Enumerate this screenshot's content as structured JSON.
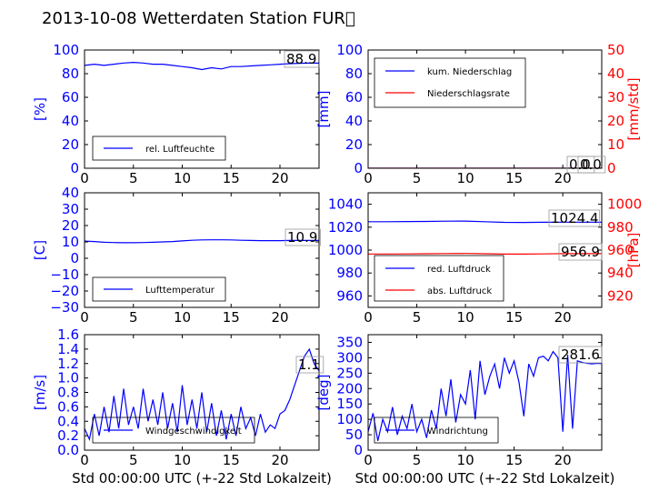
{
  "title": "2013-10-08 Wetterdaten Station FUR\u0000",
  "colors": {
    "primary": "#0000ff",
    "secondary": "#ff0000"
  },
  "chart_data": [
    {
      "id": "humidity",
      "type": "line",
      "x": [
        0,
        1,
        2,
        3,
        4,
        5,
        6,
        7,
        8,
        9,
        10,
        11,
        12,
        13,
        14,
        15,
        16,
        17,
        18,
        19,
        20,
        21,
        22,
        23,
        24
      ],
      "xlim": [
        0,
        24
      ],
      "ylim": [
        0,
        100
      ],
      "yticks": [
        0,
        20,
        40,
        60,
        80,
        100
      ],
      "xticks": [
        0,
        5,
        10,
        15,
        20
      ],
      "ylabel": "[%]",
      "series": [
        {
          "name": "rel. Luftfeuchte",
          "color": "#0000ff",
          "axis": "left",
          "values": [
            87,
            88,
            87,
            88,
            89,
            89.5,
            89,
            88,
            88,
            87,
            86,
            85,
            83.5,
            85,
            84,
            86,
            86,
            86.5,
            87,
            87.5,
            88,
            88.5,
            88.8,
            88.9,
            88.9
          ]
        }
      ],
      "annotation": "88.9",
      "legend_loc": "lower-center"
    },
    {
      "id": "precip",
      "type": "line",
      "x": [
        0,
        24
      ],
      "xlim": [
        0,
        24
      ],
      "ylim": [
        0,
        100
      ],
      "yticks": [
        0,
        20,
        40,
        60,
        80,
        100
      ],
      "ylabel": "[mm]",
      "y2lim": [
        0,
        50
      ],
      "y2ticks": [
        0,
        10,
        20,
        30,
        40,
        50
      ],
      "y2label": "[mm/std]",
      "xticks": [
        0,
        5,
        10,
        15,
        20
      ],
      "series": [
        {
          "name": "kum. Niederschlag",
          "color": "#0000ff",
          "axis": "left",
          "values": [
            0,
            0
          ]
        },
        {
          "name": "Niederschlagsrate",
          "color": "#ff0000",
          "axis": "right",
          "values": [
            0,
            0
          ]
        }
      ],
      "annotations": [
        "0.0",
        "0.0"
      ],
      "legend_loc": "upper-left"
    },
    {
      "id": "temperature",
      "type": "line",
      "x": [
        0,
        1,
        2,
        3,
        4,
        5,
        6,
        7,
        8,
        9,
        10,
        11,
        12,
        13,
        14,
        15,
        16,
        17,
        18,
        19,
        20,
        21,
        22,
        23,
        24
      ],
      "xlim": [
        0,
        24
      ],
      "ylim": [
        -30,
        40
      ],
      "yticks": [
        -30,
        -20,
        -10,
        0,
        10,
        20,
        30,
        40
      ],
      "ylabel": "[C]",
      "xticks": [
        0,
        5,
        10,
        15,
        20
      ],
      "series": [
        {
          "name": "Lufttemperatur",
          "color": "#0000ff",
          "axis": "left",
          "values": [
            10.5,
            10.2,
            9.8,
            9.6,
            9.5,
            9.5,
            9.6,
            9.8,
            10,
            10.2,
            10.6,
            11,
            11.2,
            11.3,
            11.3,
            11.2,
            11,
            10.9,
            10.8,
            10.8,
            10.8,
            10.9,
            10.9,
            10.9,
            10.9
          ]
        }
      ],
      "annotation": "10.9",
      "legend_loc": "lower-center"
    },
    {
      "id": "pressure",
      "type": "line",
      "x": [
        0,
        2,
        4,
        6,
        8,
        10,
        12,
        14,
        16,
        18,
        20,
        22,
        24
      ],
      "xlim": [
        0,
        24
      ],
      "ylim": [
        950,
        1050
      ],
      "yticks": [
        960,
        980,
        1000,
        1020,
        1040
      ],
      "y2lim": [
        910,
        1010
      ],
      "y2ticks": [
        920,
        940,
        960,
        980,
        1000
      ],
      "y2label": "[hPa]",
      "xticks": [
        0,
        5,
        10,
        15,
        20
      ],
      "series": [
        {
          "name": "red. Luftdruck",
          "color": "#0000ff",
          "axis": "left",
          "values": [
            1024.8,
            1024.8,
            1024.9,
            1025,
            1025.2,
            1025.3,
            1024.8,
            1024.2,
            1024.1,
            1024.3,
            1024.4,
            1024.4,
            1024.4
          ]
        },
        {
          "name": "abs. Luftdruck",
          "color": "#ff0000",
          "axis": "right",
          "values": [
            956.6,
            956.6,
            956.7,
            956.8,
            957,
            957.1,
            956.8,
            956.5,
            956.5,
            956.7,
            956.9,
            956.9,
            956.9
          ]
        }
      ],
      "annotations": [
        "1024.4",
        "956.9"
      ],
      "legend_loc": "lower-left"
    },
    {
      "id": "windspeed",
      "type": "line",
      "x": [
        0,
        0.5,
        1,
        1.5,
        2,
        2.5,
        3,
        3.5,
        4,
        4.5,
        5,
        5.5,
        6,
        6.5,
        7,
        7.5,
        8,
        8.5,
        9,
        9.5,
        10,
        10.5,
        11,
        11.5,
        12,
        12.5,
        13,
        13.5,
        14,
        14.5,
        15,
        15.5,
        16,
        16.5,
        17,
        17.5,
        18,
        18.5,
        19,
        19.5,
        20,
        20.5,
        21,
        21.5,
        22,
        22.5,
        23,
        23.5,
        24
      ],
      "xlim": [
        0,
        24
      ],
      "ylim": [
        0,
        1.6
      ],
      "yticks": [
        0.0,
        0.2,
        0.4,
        0.6,
        0.8,
        1.0,
        1.2,
        1.4,
        1.6
      ],
      "ylabel": "[m/s]",
      "xticks": [
        0,
        5,
        10,
        15,
        20
      ],
      "xlabel": "Std 00:00:00 UTC (+-22 Std Lokalzeit)",
      "series": [
        {
          "name": "Windgeschwindigkeit",
          "color": "#0000ff",
          "axis": "left",
          "values": [
            0.3,
            0.15,
            0.5,
            0.2,
            0.6,
            0.25,
            0.75,
            0.3,
            0.85,
            0.35,
            0.6,
            0.3,
            0.85,
            0.4,
            0.7,
            0.35,
            0.8,
            0.3,
            0.65,
            0.25,
            0.9,
            0.35,
            0.7,
            0.3,
            0.8,
            0.25,
            0.65,
            0.2,
            0.55,
            0.15,
            0.5,
            0.2,
            0.6,
            0.3,
            0.45,
            0.2,
            0.5,
            0.25,
            0.35,
            0.3,
            0.5,
            0.55,
            0.7,
            0.9,
            1.1,
            1.3,
            1.4,
            1.2,
            1.1
          ]
        }
      ],
      "annotation": "1.1",
      "legend_loc": "lower-center"
    },
    {
      "id": "winddir",
      "type": "line",
      "x": [
        0,
        0.5,
        1,
        1.5,
        2,
        2.5,
        3,
        3.5,
        4,
        4.5,
        5,
        5.5,
        6,
        6.5,
        7,
        7.5,
        8,
        8.5,
        9,
        9.5,
        10,
        10.5,
        11,
        11.5,
        12,
        12.5,
        13,
        13.5,
        14,
        14.5,
        15,
        15.5,
        16,
        16.5,
        17,
        17.5,
        18,
        18.5,
        19,
        19.5,
        20,
        20.5,
        21,
        21.5,
        22,
        22.5,
        23,
        23.5,
        24
      ],
      "xlim": [
        0,
        24
      ],
      "ylim": [
        0,
        375
      ],
      "yticks": [
        0,
        50,
        100,
        150,
        200,
        250,
        300,
        350
      ],
      "ylabel": "[deg]",
      "xticks": [
        0,
        5,
        10,
        15,
        20
      ],
      "xlabel": "Std 00:00:00 UTC (+-22 Std Lokalzeit)",
      "series": [
        {
          "name": "Windrichtung",
          "color": "#0000ff",
          "axis": "left",
          "values": [
            60,
            120,
            30,
            100,
            60,
            140,
            50,
            110,
            70,
            150,
            60,
            100,
            40,
            130,
            70,
            200,
            110,
            230,
            90,
            180,
            150,
            260,
            100,
            290,
            180,
            240,
            280,
            200,
            300,
            250,
            290,
            220,
            110,
            280,
            240,
            300,
            305,
            290,
            320,
            300,
            60,
            310,
            70,
            290,
            285,
            282,
            280,
            282,
            281.6
          ]
        }
      ],
      "annotation": "281.6",
      "legend_loc": "lower-center"
    }
  ]
}
